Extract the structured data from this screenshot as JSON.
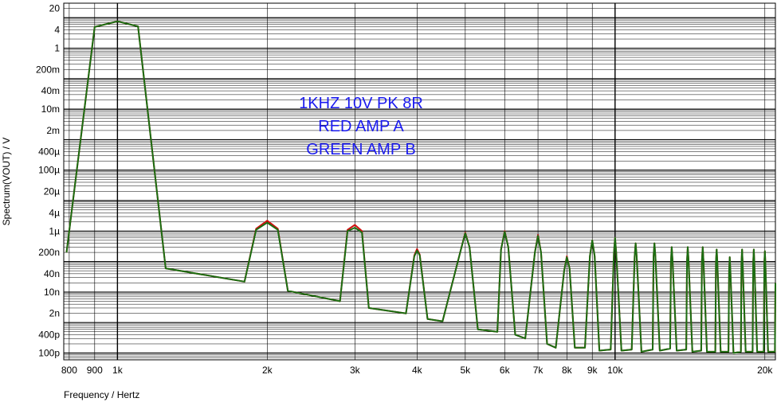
{
  "chart_data": {
    "type": "line",
    "xlabel": "Frequency / Hertz",
    "ylabel": "Spectrum(VOUT) / V",
    "x_scale": "log",
    "y_scale": "log",
    "xlim": [
      780,
      21000
    ],
    "ylim": [
      6e-11,
      30
    ],
    "grid": true,
    "x_ticks": [
      {
        "value": 800,
        "label": "800"
      },
      {
        "value": 900,
        "label": "900"
      },
      {
        "value": 1000,
        "label": "1k"
      },
      {
        "value": 2000,
        "label": "2k"
      },
      {
        "value": 3000,
        "label": "3k"
      },
      {
        "value": 4000,
        "label": "4k"
      },
      {
        "value": 5000,
        "label": "5k"
      },
      {
        "value": 6000,
        "label": "6k"
      },
      {
        "value": 7000,
        "label": "7k"
      },
      {
        "value": 8000,
        "label": "8k"
      },
      {
        "value": 9000,
        "label": "9k"
      },
      {
        "value": 10000,
        "label": "10k"
      },
      {
        "value": 20000,
        "label": "20k"
      }
    ],
    "y_ticks": [
      {
        "value": 20,
        "label": "20"
      },
      {
        "value": 4,
        "label": "4"
      },
      {
        "value": 1,
        "label": "1"
      },
      {
        "value": 0.2,
        "label": "200m"
      },
      {
        "value": 0.04,
        "label": "40m"
      },
      {
        "value": 0.01,
        "label": "10m"
      },
      {
        "value": 0.002,
        "label": "2m"
      },
      {
        "value": 0.0004,
        "label": "400µ"
      },
      {
        "value": 0.0001,
        "label": "100µ"
      },
      {
        "value": 2e-05,
        "label": "20µ"
      },
      {
        "value": 4e-06,
        "label": "4µ"
      },
      {
        "value": 1e-06,
        "label": "1µ"
      },
      {
        "value": 2e-07,
        "label": "200n"
      },
      {
        "value": 4e-08,
        "label": "40n"
      },
      {
        "value": 1e-08,
        "label": "10n"
      },
      {
        "value": 2e-09,
        "label": "2n"
      },
      {
        "value": 4e-10,
        "label": "400p"
      },
      {
        "value": 1e-10,
        "label": "100p"
      }
    ],
    "annotations": [
      "1KHZ 10V PK 8R",
      "RED AMP A",
      "GREEN AMP B"
    ],
    "series": [
      {
        "color": "#d01010",
        "points": [
          [
            790,
            2e-07
          ],
          [
            900,
            5
          ],
          [
            1000,
            7.6
          ],
          [
            1100,
            5.2
          ],
          [
            1250,
            6e-08
          ],
          [
            1800,
            2.2e-08
          ],
          [
            1900,
            1.2e-06
          ],
          [
            2000,
            2.2e-06
          ],
          [
            2100,
            1.2e-06
          ],
          [
            2200,
            1.1e-08
          ],
          [
            2800,
            5e-09
          ],
          [
            2900,
            1.1e-06
          ],
          [
            3000,
            1.6e-06
          ],
          [
            3100,
            1e-06
          ],
          [
            3200,
            3e-09
          ],
          [
            3800,
            2e-09
          ],
          [
            3950,
            1.6e-07
          ],
          [
            4000,
            2.6e-07
          ],
          [
            4050,
            1.7e-07
          ],
          [
            4200,
            1.3e-09
          ],
          [
            4500,
            1.1e-09
          ],
          [
            4900,
            2.5e-07
          ],
          [
            5000,
            9e-07
          ],
          [
            5100,
            3e-07
          ],
          [
            5300,
            6e-10
          ],
          [
            5800,
            5e-10
          ],
          [
            5900,
            2.5e-07
          ],
          [
            6000,
            1e-06
          ],
          [
            6100,
            3e-07
          ],
          [
            6300,
            4e-10
          ],
          [
            6600,
            3e-10
          ],
          [
            6900,
            2e-07
          ],
          [
            7000,
            7.5e-07
          ],
          [
            7100,
            2e-07
          ],
          [
            7300,
            2e-10
          ],
          [
            7600,
            1.5e-10
          ],
          [
            7900,
            5e-08
          ],
          [
            8000,
            1.5e-07
          ],
          [
            8100,
            6e-08
          ],
          [
            8300,
            1.5e-10
          ],
          [
            8700,
            1.5e-10
          ],
          [
            8900,
            1.5e-07
          ],
          [
            9000,
            5e-07
          ],
          [
            9100,
            1.5e-07
          ],
          [
            9300,
            1.2e-10
          ],
          [
            9800,
            1.3e-10
          ],
          [
            9950,
            2e-07
          ],
          [
            10000,
            6e-07
          ],
          [
            10050,
            2e-07
          ],
          [
            10300,
            1.2e-10
          ],
          [
            10800,
            1.3e-10
          ],
          [
            10950,
            1.5e-07
          ],
          [
            11000,
            4e-07
          ],
          [
            11050,
            1.5e-07
          ],
          [
            11300,
            1.1e-10
          ],
          [
            11900,
            1.3e-10
          ],
          [
            11950,
            1.5e-07
          ],
          [
            12000,
            4e-07
          ],
          [
            12050,
            1.5e-07
          ],
          [
            12300,
            1.2e-10
          ],
          [
            12900,
            1.4e-10
          ],
          [
            12950,
            1e-07
          ],
          [
            13000,
            3e-07
          ],
          [
            13050,
            1e-07
          ],
          [
            13300,
            1.2e-10
          ],
          [
            13900,
            1.3e-10
          ],
          [
            13950,
            1.1e-07
          ],
          [
            14000,
            3e-07
          ],
          [
            14050,
            1.1e-07
          ],
          [
            14300,
            1.1e-10
          ],
          [
            14900,
            1.2e-10
          ],
          [
            14950,
            1.1e-07
          ],
          [
            15000,
            3e-07
          ],
          [
            15050,
            1.1e-07
          ],
          [
            15300,
            1.1e-10
          ],
          [
            15900,
            1.1e-10
          ],
          [
            15950,
            1e-07
          ],
          [
            16000,
            2.5e-07
          ],
          [
            16050,
            1e-07
          ],
          [
            16300,
            1.1e-10
          ],
          [
            16900,
            1.1e-10
          ],
          [
            16950,
            5e-08
          ],
          [
            17000,
            1.4e-07
          ],
          [
            17050,
            5e-08
          ],
          [
            17300,
            1e-10
          ],
          [
            17900,
            1.1e-10
          ],
          [
            17950,
            9e-08
          ],
          [
            18000,
            2.5e-07
          ],
          [
            18050,
            9e-08
          ],
          [
            18300,
            1.1e-10
          ],
          [
            18900,
            1.1e-10
          ],
          [
            18950,
            9e-08
          ],
          [
            19000,
            2.5e-07
          ],
          [
            19050,
            9e-08
          ],
          [
            19300,
            1.1e-10
          ],
          [
            19900,
            1.1e-10
          ],
          [
            19950,
            9e-08
          ],
          [
            20000,
            2.2e-07
          ],
          [
            20050,
            9e-08
          ],
          [
            20300,
            1.1e-10
          ],
          [
            20950,
            1.1e-10
          ],
          [
            21000,
            2e-08
          ]
        ]
      },
      {
        "color": "#1a6e12",
        "points": [
          [
            790,
            2e-07
          ],
          [
            900,
            5
          ],
          [
            1000,
            7.6
          ],
          [
            1100,
            5.2
          ],
          [
            1250,
            6e-08
          ],
          [
            1800,
            2.2e-08
          ],
          [
            1900,
            1.1e-06
          ],
          [
            2000,
            1.9e-06
          ],
          [
            2100,
            1.1e-06
          ],
          [
            2200,
            1.1e-08
          ],
          [
            2800,
            5e-09
          ],
          [
            2900,
            1e-06
          ],
          [
            3000,
            1.3e-06
          ],
          [
            3100,
            9e-07
          ],
          [
            3200,
            3e-09
          ],
          [
            3800,
            2e-09
          ],
          [
            3950,
            1.5e-07
          ],
          [
            4000,
            2.3e-07
          ],
          [
            4050,
            1.6e-07
          ],
          [
            4200,
            1.3e-09
          ],
          [
            4500,
            1.1e-09
          ],
          [
            4900,
            2.5e-07
          ],
          [
            5000,
            8.5e-07
          ],
          [
            5100,
            3e-07
          ],
          [
            5300,
            6e-10
          ],
          [
            5800,
            5e-10
          ],
          [
            5900,
            2.5e-07
          ],
          [
            6000,
            9.5e-07
          ],
          [
            6100,
            3e-07
          ],
          [
            6300,
            4e-10
          ],
          [
            6600,
            3e-10
          ],
          [
            6900,
            2e-07
          ],
          [
            7000,
            7e-07
          ],
          [
            7100,
            2e-07
          ],
          [
            7300,
            2e-10
          ],
          [
            7600,
            1.5e-10
          ],
          [
            7900,
            5e-08
          ],
          [
            8000,
            1.4e-07
          ],
          [
            8100,
            6e-08
          ],
          [
            8300,
            1.5e-10
          ],
          [
            8700,
            1.5e-10
          ],
          [
            8900,
            1.5e-07
          ],
          [
            9000,
            5e-07
          ],
          [
            9100,
            1.5e-07
          ],
          [
            9300,
            1.2e-10
          ],
          [
            9800,
            1.3e-10
          ],
          [
            9950,
            2e-07
          ],
          [
            10000,
            6e-07
          ],
          [
            10050,
            2e-07
          ],
          [
            10300,
            1.2e-10
          ],
          [
            10800,
            1.3e-10
          ],
          [
            10950,
            1.5e-07
          ],
          [
            11000,
            4e-07
          ],
          [
            11050,
            1.5e-07
          ],
          [
            11300,
            1.1e-10
          ],
          [
            11900,
            1.3e-10
          ],
          [
            11950,
            1.5e-07
          ],
          [
            12000,
            4e-07
          ],
          [
            12050,
            1.5e-07
          ],
          [
            12300,
            1.2e-10
          ],
          [
            12900,
            1.4e-10
          ],
          [
            12950,
            1e-07
          ],
          [
            13000,
            3e-07
          ],
          [
            13050,
            1e-07
          ],
          [
            13300,
            1.2e-10
          ],
          [
            13900,
            1.3e-10
          ],
          [
            13950,
            1.1e-07
          ],
          [
            14000,
            3e-07
          ],
          [
            14050,
            1.1e-07
          ],
          [
            14300,
            1.1e-10
          ],
          [
            14900,
            1.2e-10
          ],
          [
            14950,
            1.1e-07
          ],
          [
            15000,
            3e-07
          ],
          [
            15050,
            1.1e-07
          ],
          [
            15300,
            1.1e-10
          ],
          [
            15900,
            1.1e-10
          ],
          [
            15950,
            1e-07
          ],
          [
            16000,
            2.5e-07
          ],
          [
            16050,
            1e-07
          ],
          [
            16300,
            1.1e-10
          ],
          [
            16900,
            1.1e-10
          ],
          [
            16950,
            5e-08
          ],
          [
            17000,
            1.4e-07
          ],
          [
            17050,
            5e-08
          ],
          [
            17300,
            1e-10
          ],
          [
            17900,
            1.1e-10
          ],
          [
            17950,
            9e-08
          ],
          [
            18000,
            2.5e-07
          ],
          [
            18050,
            9e-08
          ],
          [
            18300,
            1.1e-10
          ],
          [
            18900,
            1.1e-10
          ],
          [
            18950,
            9e-08
          ],
          [
            19000,
            2.5e-07
          ],
          [
            19050,
            9e-08
          ],
          [
            19300,
            1.1e-10
          ],
          [
            19900,
            1.1e-10
          ],
          [
            19950,
            9e-08
          ],
          [
            20000,
            2.2e-07
          ],
          [
            20050,
            9e-08
          ],
          [
            20300,
            1.1e-10
          ],
          [
            20950,
            1.1e-10
          ],
          [
            21000,
            2e-08
          ]
        ]
      }
    ]
  },
  "colors": {
    "annotation": "#1a1aee",
    "grid": "#000000",
    "axis": "#000000"
  }
}
